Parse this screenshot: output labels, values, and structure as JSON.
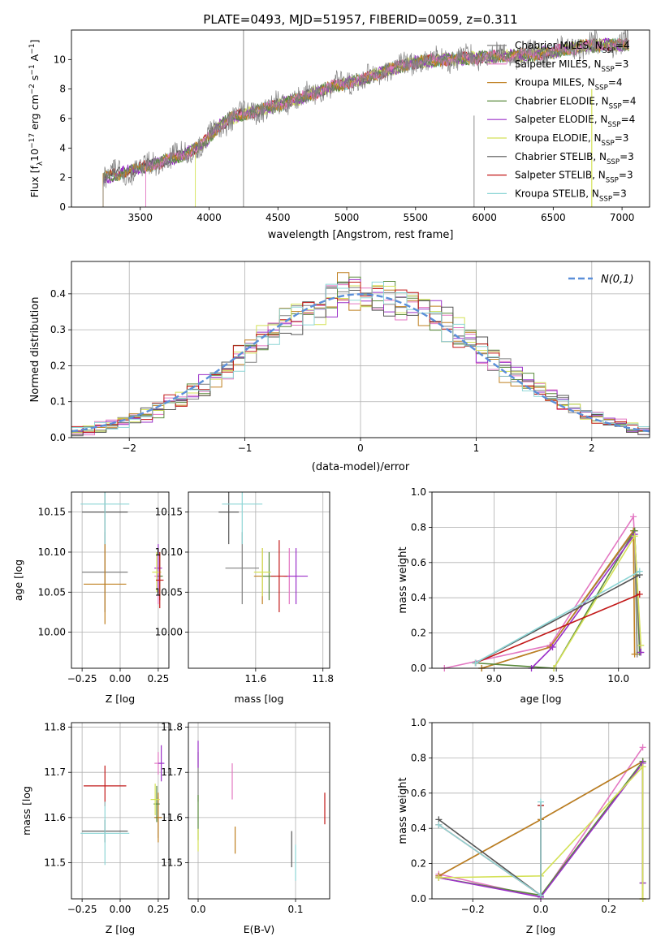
{
  "figure": {
    "title": "PLATE=0493, MJD=51957, FIBERID=0059, z=0.311"
  },
  "colors": [
    "#808080",
    "#e377c2",
    "#bf7f1f",
    "#5a8a3c",
    "#9b30c8",
    "#d4e157",
    "#555555",
    "#c21818",
    "#8ed6d6"
  ],
  "chart_data": [
    {
      "id": "spectrum",
      "type": "line",
      "xlabel": "wavelength [Angstrom, rest frame]",
      "ylabel": "Flux [f$_\\lambda$10$^{-17}$ erg cm$^{-2}$ s$^{-1}$ A$^{-1}$]",
      "ylabel_main": "Flux [f",
      "ylabel_parts": [
        "λ",
        "10",
        "−17",
        " erg cm",
        "−2",
        " s",
        "−1",
        " A",
        "−1",
        "]"
      ],
      "xlim": [
        3000,
        7200
      ],
      "ylim": [
        0,
        12
      ],
      "xticks": [
        "3500",
        "4000",
        "4500",
        "5000",
        "5500",
        "6000",
        "6500",
        "7000"
      ],
      "yticks": [
        "0",
        "2",
        "4",
        "6",
        "8",
        "10"
      ],
      "legend_position": "right",
      "legend": [
        {
          "base": "Chabrier MILES, N",
          "sub": "SSP",
          "tail": "=4"
        },
        {
          "base": "Salpeter MILES, N",
          "sub": "SSP",
          "tail": "=3"
        },
        {
          "base": "Kroupa MILES, N",
          "sub": "SSP",
          "tail": "=4"
        },
        {
          "base": "Chabrier ELODIE, N",
          "sub": "SSP",
          "tail": "=4"
        },
        {
          "base": "Salpeter ELODIE, N",
          "sub": "SSP",
          "tail": "=4"
        },
        {
          "base": "Kroupa ELODIE, N",
          "sub": "SSP",
          "tail": "=3"
        },
        {
          "base": "Chabrier STELIB, N",
          "sub": "SSP",
          "tail": "=3"
        },
        {
          "base": "Salpeter STELIB, N",
          "sub": "SSP",
          "tail": "=3"
        },
        {
          "base": "Kroupa STELIB, N",
          "sub": "SSP",
          "tail": "=3"
        }
      ],
      "continuum": [
        [
          3230,
          2.0
        ],
        [
          3400,
          2.4
        ],
        [
          3600,
          2.9
        ],
        [
          3800,
          3.5
        ],
        [
          3950,
          4.2
        ],
        [
          4050,
          5.3
        ],
        [
          4150,
          6.0
        ],
        [
          4300,
          6.4
        ],
        [
          4500,
          6.9
        ],
        [
          4700,
          7.5
        ],
        [
          4900,
          8.2
        ],
        [
          5100,
          8.6
        ],
        [
          5300,
          9.3
        ],
        [
          5500,
          9.8
        ],
        [
          5700,
          10.0
        ],
        [
          5900,
          10.1
        ],
        [
          6100,
          10.2
        ],
        [
          6300,
          10.3
        ],
        [
          6500,
          10.5
        ],
        [
          6700,
          10.9
        ],
        [
          6900,
          11.0
        ],
        [
          7050,
          11.0
        ]
      ]
    },
    {
      "id": "residuals",
      "type": "histogram",
      "xlabel": "(data-model)/error",
      "ylabel": "Normed distribution",
      "xlim": [
        -2.5,
        2.5
      ],
      "ylim": [
        0,
        0.49
      ],
      "xticks": [
        "−2",
        "−1",
        "0",
        "1",
        "2"
      ],
      "yticks": [
        "0.0",
        "0.1",
        "0.2",
        "0.3",
        "0.4"
      ],
      "legend_label": "N(0,1)",
      "legend_position": "top-right",
      "grid": true
    },
    {
      "id": "Z_age",
      "type": "scatter",
      "xlabel": "Z [log",
      "ylabel": "age  [log",
      "xlim": [
        -0.32,
        0.32
      ],
      "ylim": [
        9.955,
        10.175
      ],
      "xticks": [
        "−0.25",
        "0.00",
        "0.25"
      ],
      "yticks": [
        "10.00",
        "10.05",
        "10.10",
        "10.15"
      ],
      "points": [
        {
          "x": -0.1,
          "y": 10.075,
          "xe": 0.3,
          "ye": 0.1
        },
        {
          "x": 0.25,
          "y": 10.07,
          "xe": 0.05,
          "ye": 0.07
        },
        {
          "x": -0.1,
          "y": 10.06,
          "xe": 0.28,
          "ye": 0.1
        },
        {
          "x": 0.26,
          "y": 10.07,
          "xe": 0.04,
          "ye": 0.06
        },
        {
          "x": 0.25,
          "y": 10.08,
          "xe": 0.05,
          "ye": 0.06
        },
        {
          "x": 0.24,
          "y": 10.075,
          "xe": 0.06,
          "ye": 0.05
        },
        {
          "x": -0.1,
          "y": 10.15,
          "xe": 0.3,
          "ye": 0.08
        },
        {
          "x": 0.26,
          "y": 10.065,
          "xe": 0.05,
          "ye": 0.07
        },
        {
          "x": -0.1,
          "y": 10.16,
          "xe": 0.32,
          "ye": 0.1
        }
      ]
    },
    {
      "id": "mass_age",
      "type": "scatter",
      "xlabel": "mass [log",
      "ylabel": "",
      "xlim": [
        11.4,
        11.82
      ],
      "ylim": [
        9.955,
        10.175
      ],
      "xticks": [
        "11.6",
        "11.8"
      ],
      "yticks": [
        "10.00",
        "10.05",
        "10.10",
        "10.15"
      ],
      "points": [
        {
          "x": 11.56,
          "y": 10.08,
          "xe": 0.1,
          "ye": 0.09
        },
        {
          "x": 11.7,
          "y": 10.07,
          "xe": 0.04,
          "ye": 0.07
        },
        {
          "x": 11.62,
          "y": 10.07,
          "xe": 0.05,
          "ye": 0.07
        },
        {
          "x": 11.64,
          "y": 10.07,
          "xe": 0.04,
          "ye": 0.06
        },
        {
          "x": 11.72,
          "y": 10.07,
          "xe": 0.07,
          "ye": 0.07
        },
        {
          "x": 11.62,
          "y": 10.075,
          "xe": 0.05,
          "ye": 0.06
        },
        {
          "x": 11.52,
          "y": 10.15,
          "xe": 0.06,
          "ye": 0.08
        },
        {
          "x": 11.67,
          "y": 10.07,
          "xe": 0.05,
          "ye": 0.09
        },
        {
          "x": 11.56,
          "y": 10.16,
          "xe": 0.12,
          "ye": 0.1
        }
      ]
    },
    {
      "id": "age_weight",
      "type": "line",
      "xlabel": "age  [log",
      "ylabel": "mass weight",
      "xlim": [
        8.5,
        10.25
      ],
      "ylim": [
        0,
        1.0
      ],
      "xticks": [
        "9.0",
        "9.5",
        "10.0"
      ],
      "yticks": [
        "0.0",
        "0.2",
        "0.4",
        "0.6",
        "0.8",
        "1.0"
      ],
      "series": [
        {
          "x": [
            8.9,
            9.45,
            10.13,
            10.15
          ],
          "y": [
            0.0,
            0.12,
            0.78,
            0.08
          ]
        },
        {
          "x": [
            8.6,
            9.45,
            10.12,
            10.18
          ],
          "y": [
            0.0,
            0.13,
            0.86,
            0.09
          ]
        },
        {
          "x": [
            8.9,
            9.45,
            10.12,
            10.13
          ],
          "y": [
            0.0,
            0.12,
            0.78,
            0.08
          ]
        },
        {
          "x": [
            8.85,
            9.48,
            10.13,
            10.17
          ],
          "y": [
            0.03,
            0.0,
            0.78,
            0.09
          ]
        },
        {
          "x": [
            9.3,
            9.47,
            10.13,
            10.18
          ],
          "y": [
            0.0,
            0.12,
            0.76,
            0.09
          ]
        },
        {
          "x": [
            9.48,
            10.13,
            10.18
          ],
          "y": [
            0.0,
            0.75,
            0.13
          ]
        },
        {
          "x": [
            8.85,
            10.17
          ],
          "y": [
            0.03,
            0.53
          ]
        },
        {
          "x": [
            8.85,
            10.17
          ],
          "y": [
            0.03,
            0.42
          ]
        },
        {
          "x": [
            8.85,
            10.17
          ],
          "y": [
            0.03,
            0.55
          ]
        }
      ]
    },
    {
      "id": "Z_mass",
      "type": "scatter",
      "xlabel": "Z [log",
      "ylabel": "mass [log",
      "xlim": [
        -0.32,
        0.32
      ],
      "ylim": [
        11.42,
        11.81
      ],
      "xticks": [
        "−0.25",
        "0.00",
        "0.25"
      ],
      "yticks": [
        "11.5",
        "11.6",
        "11.7",
        "11.8"
      ],
      "points": [
        {
          "x": 0.25,
          "y": 11.6,
          "xe": 0.05,
          "ye": 0.09
        },
        {
          "x": 0.25,
          "y": 11.72,
          "xe": 0.05,
          "ye": 0.05
        },
        {
          "x": 0.25,
          "y": 11.6,
          "xe": 0.05,
          "ye": 0.11
        },
        {
          "x": 0.24,
          "y": 11.63,
          "xe": 0.04,
          "ye": 0.08
        },
        {
          "x": 0.27,
          "y": 11.72,
          "xe": 0.04,
          "ye": 0.08
        },
        {
          "x": 0.23,
          "y": 11.64,
          "xe": 0.06,
          "ye": 0.07
        },
        {
          "x": -0.1,
          "y": 11.57,
          "xe": 0.3,
          "ye": 0.05
        },
        {
          "x": -0.1,
          "y": 11.67,
          "xe": 0.28,
          "ye": 0.09
        },
        {
          "x": -0.1,
          "y": 11.565,
          "xe": 0.32,
          "ye": 0.14
        }
      ]
    },
    {
      "id": "ebv_mass",
      "type": "scatter",
      "xlabel": "E(B-V)",
      "ylabel": "",
      "xlim": [
        -0.01,
        0.135
      ],
      "ylim": [
        11.42,
        11.81
      ],
      "xticks": [
        "0.0",
        "0.1"
      ],
      "yticks": [
        "11.5",
        "11.6",
        "11.7",
        "11.8"
      ],
      "points": [
        {
          "x": 0.0,
          "y": 11.69,
          "xe": 0,
          "ye": 0.11
        },
        {
          "x": 0.035,
          "y": 11.68,
          "xe": 0,
          "ye": 0.08
        },
        {
          "x": 0.038,
          "y": 11.55,
          "xe": 0,
          "ye": 0.06
        },
        {
          "x": 0.0,
          "y": 11.6,
          "xe": 0,
          "ye": 0.1
        },
        {
          "x": 0.0,
          "y": 11.74,
          "xe": 0,
          "ye": 0.06
        },
        {
          "x": 0.0,
          "y": 11.55,
          "xe": 0,
          "ye": 0.05
        },
        {
          "x": 0.096,
          "y": 11.53,
          "xe": 0,
          "ye": 0.08
        },
        {
          "x": 0.13,
          "y": 11.62,
          "xe": 0,
          "ye": 0.07
        },
        {
          "x": 0.1,
          "y": 11.5,
          "xe": 0,
          "ye": 0.08
        }
      ]
    },
    {
      "id": "Z_weight",
      "type": "line",
      "xlabel": "Z [log",
      "ylabel": "mass weight",
      "xlim": [
        -0.32,
        0.32
      ],
      "ylim": [
        0,
        1.0
      ],
      "xticks": [
        "−0.2",
        "0.0",
        "0.2"
      ],
      "yticks": [
        "0.0",
        "0.2",
        "0.4",
        "0.6",
        "0.8",
        "1.0"
      ],
      "series": [
        {
          "x": [
            -0.3,
            0.0,
            0.3,
            0.3
          ],
          "y": [
            0.13,
            0.45,
            0.78,
            0.0
          ]
        },
        {
          "x": [
            -0.3,
            0.0,
            0.3
          ],
          "y": [
            0.14,
            0.01,
            0.86
          ]
        },
        {
          "x": [
            -0.3,
            0.0,
            0.3,
            0.3
          ],
          "y": [
            0.13,
            0.45,
            0.78,
            0.0
          ]
        },
        {
          "x": [
            -0.3,
            0.0,
            0.3,
            0.3
          ],
          "y": [
            0.12,
            0.02,
            0.78,
            0.09
          ]
        },
        {
          "x": [
            -0.3,
            0.0,
            0.3,
            0.3
          ],
          "y": [
            0.12,
            0.01,
            0.77,
            0.09
          ]
        },
        {
          "x": [
            -0.3,
            0.0,
            0.3,
            0.3
          ],
          "y": [
            0.12,
            0.13,
            0.75,
            0.0
          ]
        },
        {
          "x": [
            -0.3,
            0.0,
            0.0
          ],
          "y": [
            0.45,
            0.02,
            0.53
          ]
        },
        {
          "x": [
            -0.3,
            0.0,
            0.0
          ],
          "y": [
            0.42,
            0.02,
            0.53
          ]
        },
        {
          "x": [
            -0.3,
            0.0,
            0.0
          ],
          "y": [
            0.42,
            0.02,
            0.55
          ]
        }
      ]
    }
  ]
}
